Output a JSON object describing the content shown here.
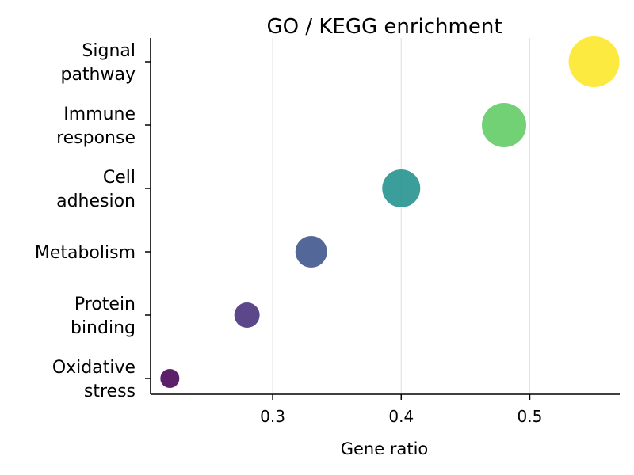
{
  "chart_data": {
    "type": "scatter",
    "title": "GO / KEGG enrichment",
    "xlabel": "Gene ratio",
    "ylabel": "",
    "xlim": [
      0.205,
      0.57
    ],
    "xticks": [
      0.3,
      0.4,
      0.5
    ],
    "xtick_labels": [
      "0.3",
      "0.4",
      "0.5"
    ],
    "grid": "vertical",
    "categories": [
      [
        "Oxidative",
        "stress"
      ],
      [
        "Protein",
        "binding"
      ],
      [
        "Metabolism"
      ],
      [
        "Cell",
        "adhesion"
      ],
      [
        "Immune",
        "response"
      ],
      [
        "Signal",
        "pathway"
      ]
    ],
    "points": [
      {
        "x": 0.22,
        "category_index": 0,
        "magnitude": 1,
        "color": "#440154"
      },
      {
        "x": 0.28,
        "category_index": 1,
        "magnitude": 2,
        "color": "#472d7b"
      },
      {
        "x": 0.33,
        "category_index": 2,
        "magnitude": 3,
        "color": "#3b528b"
      },
      {
        "x": 0.4,
        "category_index": 3,
        "magnitude": 4,
        "color": "#21918c"
      },
      {
        "x": 0.48,
        "category_index": 4,
        "magnitude": 5,
        "color": "#5ec962"
      },
      {
        "x": 0.55,
        "category_index": 5,
        "magnitude": 6,
        "color": "#fde725"
      }
    ]
  }
}
